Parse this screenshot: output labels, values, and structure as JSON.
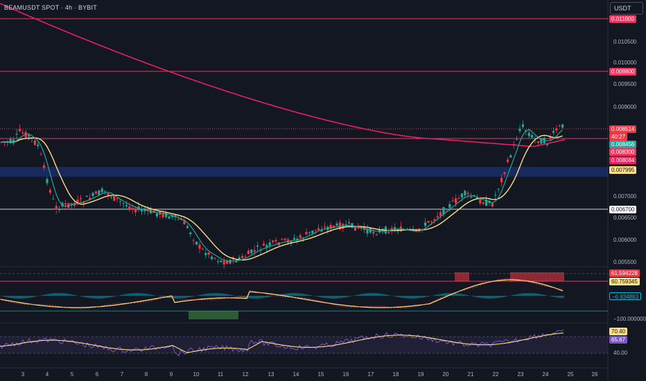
{
  "header": {
    "symbol_title": "BEAMUSDT SPOT · 4h · BYBIT",
    "currency_button": "USDT"
  },
  "price_axis": {
    "labels": [
      "0.010500",
      "0.010000",
      "0.009500",
      "0.009000",
      "0.007000",
      "0.006500",
      "0.006000",
      "0.005500"
    ]
  },
  "price_tags": {
    "level_1": "0.011000",
    "level_2": "0.009800",
    "last_price": "0.008514",
    "countdown": "40:27",
    "ema_fast": "0.008456",
    "level_3": "0.008300",
    "sma_long": "0.008084",
    "ema_slow": "0.007995",
    "level_4": "0.006700"
  },
  "indicator_tags": {
    "osc_a": "61.594228",
    "osc_b": "60.759345",
    "osc_c": "−0.834883",
    "osc_lower": "−100.000000",
    "rsi": "70.40",
    "rsi_ma": "65.67",
    "rsi_lower": "40.00"
  },
  "time_axis": {
    "labels": [
      "3",
      "4",
      "5",
      "6",
      "7",
      "8",
      "9",
      "10",
      "11",
      "12",
      "13",
      "14",
      "15",
      "16",
      "17",
      "18",
      "19",
      "20",
      "21",
      "22",
      "23",
      "24",
      "25",
      "26"
    ]
  },
  "colors": {
    "background": "#131722",
    "up": "#26a69a",
    "down": "#f23645",
    "level_line": "#f2365f",
    "sma_long": "#e91e63",
    "ema_slow": "#ffe082",
    "ema_fast": "#26a69a"
  }
}
